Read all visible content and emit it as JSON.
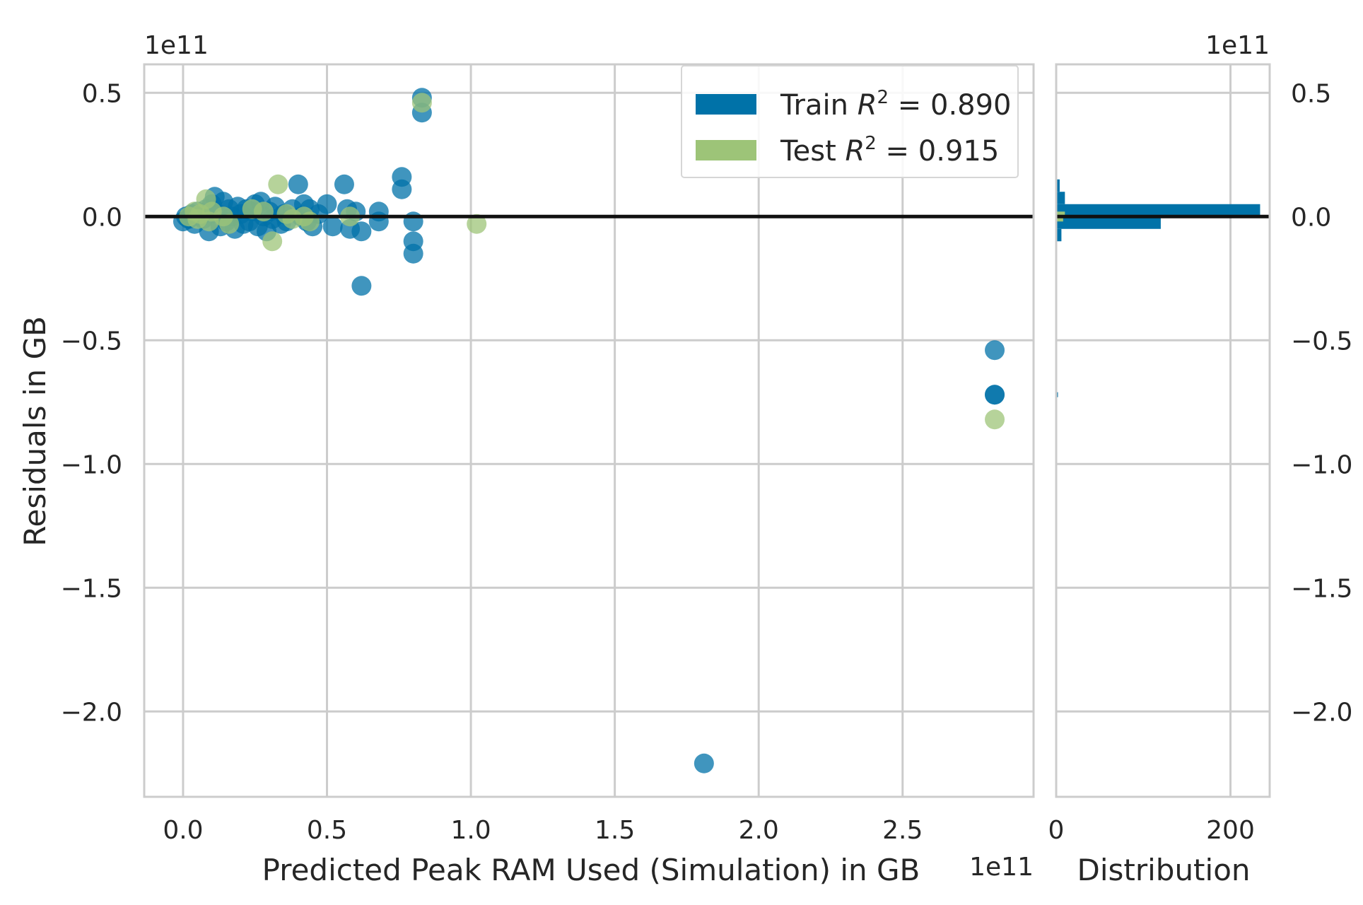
{
  "chart_data": {
    "type": "scatter",
    "title": "",
    "xlabel": "Predicted Peak RAM Used (Simulation) in GB",
    "ylabel": "Residuals in GB",
    "x_offset_text": "1e11",
    "y_offset_text": "1e11",
    "xlim": [
      -0.135,
      2.955
    ],
    "ylim": [
      -2.345,
      0.615
    ],
    "x_scale_label": "1e11",
    "xticks": [
      "0.0",
      "0.5",
      "1.0",
      "1.5",
      "2.0",
      "2.5"
    ],
    "yticks": [
      "0.5",
      "0.0",
      "−0.5",
      "−1.0",
      "−1.5",
      "−2.0"
    ],
    "xtick_values": [
      0.0,
      0.5,
      1.0,
      1.5,
      2.0,
      2.5
    ],
    "ytick_values": [
      0.5,
      0.0,
      -0.5,
      -1.0,
      -1.5,
      -2.0
    ],
    "grid": true,
    "zero_line": 0.0,
    "legend": {
      "placement": "top-right",
      "entries": [
        {
          "label_prefix": "Train ",
          "label_math": "R",
          "label_sup": "2",
          "label_suffix": " = 0.890",
          "color": "#0072a8"
        },
        {
          "label_prefix": "Test ",
          "label_math": "R",
          "label_sup": "2",
          "label_suffix": " = 0.915",
          "color": "#9dc478"
        }
      ]
    },
    "series": [
      {
        "name": "Train",
        "color": "#0072a8",
        "points": [
          [
            0.0,
            -0.02
          ],
          [
            0.01,
            0.0
          ],
          [
            0.02,
            -0.01
          ],
          [
            0.03,
            0.01
          ],
          [
            0.04,
            -0.03
          ],
          [
            0.05,
            0.02
          ],
          [
            0.06,
            0.0
          ],
          [
            0.07,
            -0.01
          ],
          [
            0.08,
            0.03
          ],
          [
            0.09,
            -0.06
          ],
          [
            0.1,
            0.05
          ],
          [
            0.11,
            0.08
          ],
          [
            0.12,
            0.01
          ],
          [
            0.13,
            -0.04
          ],
          [
            0.14,
            0.06
          ],
          [
            0.15,
            -0.02
          ],
          [
            0.16,
            0.03
          ],
          [
            0.17,
            0.0
          ],
          [
            0.18,
            -0.05
          ],
          [
            0.19,
            0.04
          ],
          [
            0.2,
            0.01
          ],
          [
            0.21,
            -0.03
          ],
          [
            0.22,
            0.03
          ],
          [
            0.23,
            -0.02
          ],
          [
            0.24,
            0.02
          ],
          [
            0.25,
            0.05
          ],
          [
            0.26,
            -0.04
          ],
          [
            0.27,
            0.06
          ],
          [
            0.28,
            0.0
          ],
          [
            0.29,
            -0.06
          ],
          [
            0.3,
            0.02
          ],
          [
            0.31,
            -0.01
          ],
          [
            0.32,
            0.04
          ],
          [
            0.34,
            -0.03
          ],
          [
            0.35,
            0.01
          ],
          [
            0.36,
            -0.02
          ],
          [
            0.38,
            0.03
          ],
          [
            0.4,
            0.13
          ],
          [
            0.41,
            0.0
          ],
          [
            0.42,
            0.05
          ],
          [
            0.43,
            -0.02
          ],
          [
            0.44,
            0.03
          ],
          [
            0.45,
            -0.04
          ],
          [
            0.47,
            0.01
          ],
          [
            0.5,
            0.05
          ],
          [
            0.52,
            -0.04
          ],
          [
            0.56,
            0.13
          ],
          [
            0.57,
            0.03
          ],
          [
            0.58,
            -0.05
          ],
          [
            0.6,
            0.02
          ],
          [
            0.62,
            -0.06
          ],
          [
            0.62,
            -0.28
          ],
          [
            0.68,
            0.02
          ],
          [
            0.68,
            -0.02
          ],
          [
            0.76,
            0.16
          ],
          [
            0.76,
            0.11
          ],
          [
            0.8,
            -0.02
          ],
          [
            0.8,
            -0.1
          ],
          [
            0.8,
            -0.15
          ],
          [
            0.83,
            0.48
          ],
          [
            0.83,
            0.42
          ],
          [
            1.81,
            -2.21
          ],
          [
            2.82,
            -0.54
          ],
          [
            2.82,
            -0.72
          ],
          [
            2.82,
            -0.72
          ]
        ]
      },
      {
        "name": "Test",
        "color": "#9dc478",
        "points": [
          [
            0.02,
            0.0
          ],
          [
            0.04,
            0.02
          ],
          [
            0.05,
            -0.01
          ],
          [
            0.06,
            0.01
          ],
          [
            0.08,
            0.07
          ],
          [
            0.09,
            -0.02
          ],
          [
            0.1,
            0.02
          ],
          [
            0.14,
            0.0
          ],
          [
            0.16,
            -0.03
          ],
          [
            0.24,
            0.03
          ],
          [
            0.28,
            0.02
          ],
          [
            0.31,
            -0.1
          ],
          [
            0.33,
            0.13
          ],
          [
            0.36,
            0.01
          ],
          [
            0.38,
            -0.01
          ],
          [
            0.42,
            0.0
          ],
          [
            0.44,
            -0.02
          ],
          [
            0.58,
            0.0
          ],
          [
            0.83,
            0.46
          ],
          [
            1.02,
            -0.03
          ],
          [
            2.82,
            -0.82
          ]
        ]
      }
    ]
  },
  "distribution_panel": {
    "xlabel": "Distribution",
    "y_offset_text": "1e11",
    "xticks": [
      "0",
      "200"
    ],
    "xtick_values": [
      0,
      200
    ],
    "xlim": [
      0,
      245
    ],
    "bars": [
      {
        "series": "Train",
        "y_low": 0.0,
        "y_high": 0.05,
        "count": 234,
        "color": "#0072a8"
      },
      {
        "series": "Train",
        "y_low": -0.05,
        "y_high": 0.0,
        "count": 120,
        "color": "#0072a8"
      },
      {
        "series": "Train",
        "y_low": 0.05,
        "y_high": 0.1,
        "count": 10,
        "color": "#0072a8"
      },
      {
        "series": "Train",
        "y_low": 0.1,
        "y_high": 0.15,
        "count": 4,
        "color": "#0072a8"
      },
      {
        "series": "Train",
        "y_low": -0.1,
        "y_high": -0.05,
        "count": 6,
        "color": "#0072a8"
      },
      {
        "series": "Train",
        "y_low": -0.73,
        "y_high": -0.71,
        "count": 2,
        "color": "#0072a8"
      },
      {
        "series": "Test",
        "y_low": 0.0,
        "y_high": 0.02,
        "count": 10,
        "color": "#9dc478"
      },
      {
        "series": "Test",
        "y_low": -0.02,
        "y_high": 0.0,
        "count": 8,
        "color": "#9dc478"
      }
    ]
  }
}
